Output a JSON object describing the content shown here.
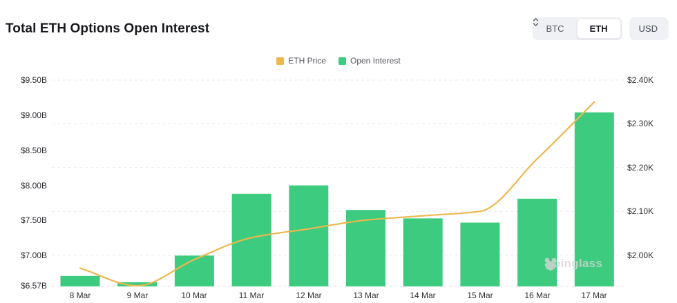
{
  "header": {
    "title": "Total ETH Options Open Interest",
    "coin_toggle": {
      "options": [
        "BTC",
        "ETH"
      ],
      "selected": "ETH"
    },
    "currency_select": {
      "value": "USD"
    }
  },
  "legend": {
    "items": [
      {
        "label": "ETH Price",
        "color": "#ecb84e"
      },
      {
        "label": "Open Interest",
        "color": "#3dcb7f"
      }
    ]
  },
  "watermark": {
    "text": "coinglass"
  },
  "colors": {
    "bar_green": "#3dcb7f",
    "line_yellow": "#ecb84e",
    "grid_line": "#e8e8f0",
    "baseline": "#dcdce4",
    "axis_text": "#2e2f34",
    "control_bg": "#f0f1f5",
    "title_text": "#17181c"
  },
  "chart_data": {
    "type": "bar",
    "subtype": "dual-axis bar + line combo",
    "title": "Total ETH Options Open Interest",
    "categories": [
      "8 Mar",
      "9 Mar",
      "10 Mar",
      "11 Mar",
      "12 Mar",
      "13 Mar",
      "14 Mar",
      "15 Mar",
      "16 Mar",
      "17 Mar"
    ],
    "series": [
      {
        "name": "Open Interest",
        "type": "bar",
        "axis": "left",
        "unit": "USD billions",
        "color": "#3dcb7f",
        "values": [
          6.71,
          6.62,
          7.0,
          7.88,
          8.0,
          7.65,
          7.53,
          7.47,
          7.81,
          9.04
        ]
      },
      {
        "name": "ETH Price",
        "type": "line",
        "axis": "right",
        "unit": "USD thousands",
        "color": "#ecb84e",
        "values": [
          1.97,
          1.93,
          1.99,
          2.04,
          2.06,
          2.08,
          2.09,
          2.1,
          2.22,
          2.35
        ]
      }
    ],
    "left_axis": {
      "tick_labels": [
        "$9.50B",
        "$9.00B",
        "$8.50B",
        "$8.00B",
        "$7.50B",
        "$7.00B",
        "$6.57B"
      ],
      "tick_values": [
        9.5,
        9.0,
        8.5,
        8.0,
        7.5,
        7.0,
        6.57
      ],
      "min": 6.57,
      "value_at_top_gridline": 9.5
    },
    "right_axis": {
      "tick_labels": [
        "$2.40K",
        "$2.30K",
        "$2.20K",
        "$2.10K",
        "$2.00K"
      ],
      "tick_values": [
        2.4,
        2.3,
        2.2,
        2.1,
        2.0
      ],
      "min": 1.93,
      "value_at_top_gridline": 2.4
    },
    "grid": {
      "horizontal_dashed": true
    },
    "legend_position": "top-center"
  }
}
